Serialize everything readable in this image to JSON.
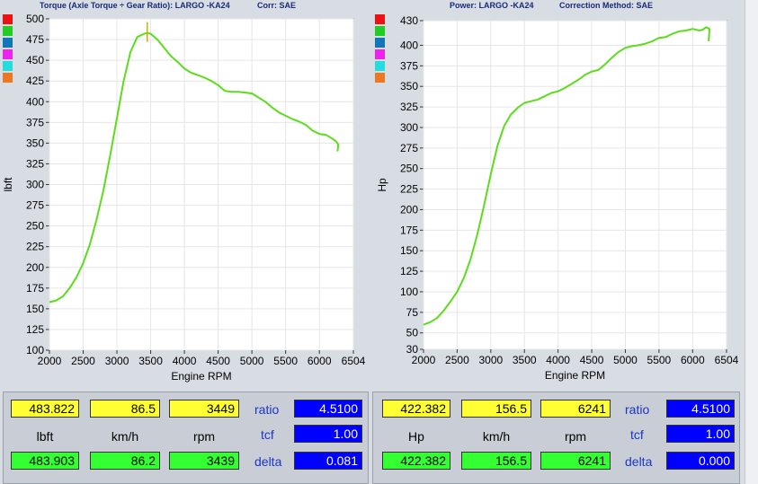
{
  "colors": {
    "curve": "#5ddc1e",
    "panel_bg": "#d8dde4",
    "title": "#1a2a7a"
  },
  "swatches": [
    "#ee1111",
    "#22cc22",
    "#1177bb",
    "#ee22ee",
    "#22dddd",
    "#ee7722"
  ],
  "chart_data": [
    {
      "type": "line",
      "title": "Torque (Axle Torque ÷ Gear Ratio): LARGO -KA24",
      "corr": "Corr: SAE",
      "xlabel": "Engine RPM",
      "ylabel": "lbft",
      "xlim": [
        2000,
        6504
      ],
      "ylim": [
        100,
        500
      ],
      "xticks": [
        2000,
        2500,
        3000,
        3500,
        4000,
        4500,
        5000,
        5500,
        6000,
        6504
      ],
      "yticks": [
        100,
        125,
        150,
        175,
        200,
        225,
        250,
        275,
        300,
        325,
        350,
        375,
        400,
        425,
        450,
        475,
        500
      ],
      "grid": true,
      "cursor_rpm": 3449,
      "series": [
        {
          "x": [
            2000,
            2100,
            2200,
            2300,
            2400,
            2500,
            2600,
            2700,
            2800,
            2900,
            3000,
            3100,
            3200,
            3300,
            3400,
            3450,
            3500,
            3600,
            3700,
            3800,
            3900,
            4000,
            4100,
            4200,
            4300,
            4400,
            4500,
            4600,
            4700,
            4800,
            4900,
            5000,
            5100,
            5200,
            5300,
            5400,
            5500,
            5600,
            5700,
            5800,
            5900,
            6000,
            6100,
            6200,
            6250,
            6280,
            6270
          ],
          "y": [
            158,
            160,
            165,
            175,
            188,
            205,
            228,
            258,
            293,
            335,
            380,
            425,
            460,
            478,
            482,
            483,
            482,
            475,
            465,
            455,
            448,
            440,
            435,
            432,
            429,
            425,
            420,
            413,
            412,
            412,
            411,
            410,
            405,
            400,
            393,
            387,
            383,
            379,
            376,
            372,
            365,
            361,
            360,
            355,
            352,
            348,
            340
          ]
        }
      ]
    },
    {
      "type": "line",
      "title": "Power: LARGO -KA24",
      "corr": "Correction Method: SAE",
      "xlabel": "Engine RPM",
      "ylabel": "Hp",
      "xlim": [
        2000,
        6504
      ],
      "ylim": [
        30,
        430
      ],
      "xticks": [
        2000,
        2500,
        3000,
        3500,
        4000,
        4500,
        5000,
        5500,
        6000,
        6504
      ],
      "yticks": [
        30,
        50,
        75,
        100,
        125,
        150,
        175,
        200,
        225,
        250,
        275,
        300,
        325,
        350,
        375,
        400,
        430
      ],
      "grid": true,
      "series": [
        {
          "x": [
            2000,
            2100,
            2200,
            2300,
            2400,
            2500,
            2600,
            2700,
            2800,
            2900,
            3000,
            3100,
            3200,
            3300,
            3400,
            3500,
            3600,
            3700,
            3800,
            3900,
            4000,
            4100,
            4200,
            4300,
            4400,
            4500,
            4600,
            4700,
            4800,
            4900,
            5000,
            5100,
            5200,
            5300,
            5400,
            5500,
            5600,
            5700,
            5800,
            5900,
            6000,
            6100,
            6150,
            6200,
            6250,
            6240
          ],
          "y": [
            60,
            63,
            68,
            77,
            88,
            100,
            117,
            140,
            170,
            205,
            243,
            278,
            302,
            316,
            324,
            330,
            332,
            334,
            338,
            342,
            344,
            348,
            353,
            358,
            364,
            368,
            370,
            377,
            385,
            392,
            397,
            399,
            400,
            402,
            405,
            409,
            410,
            414,
            417,
            418,
            420,
            418,
            419,
            422,
            420,
            405
          ]
        }
      ]
    }
  ],
  "readouts": [
    {
      "top": [
        "483.822",
        "86.5",
        "3449"
      ],
      "units": [
        "lbft",
        "km/h",
        "rpm"
      ],
      "bottom": [
        "483.903",
        "86.2",
        "3439"
      ],
      "labels": [
        "ratio",
        "tcf",
        "delta"
      ],
      "values": [
        "4.5100",
        "1.00",
        "0.081"
      ]
    },
    {
      "top": [
        "422.382",
        "156.5",
        "6241"
      ],
      "units": [
        "Hp",
        "km/h",
        "rpm"
      ],
      "bottom": [
        "422.382",
        "156.5",
        "6241"
      ],
      "labels": [
        "ratio",
        "tcf",
        "delta"
      ],
      "values": [
        "4.5100",
        "1.00",
        "0.000"
      ]
    }
  ]
}
